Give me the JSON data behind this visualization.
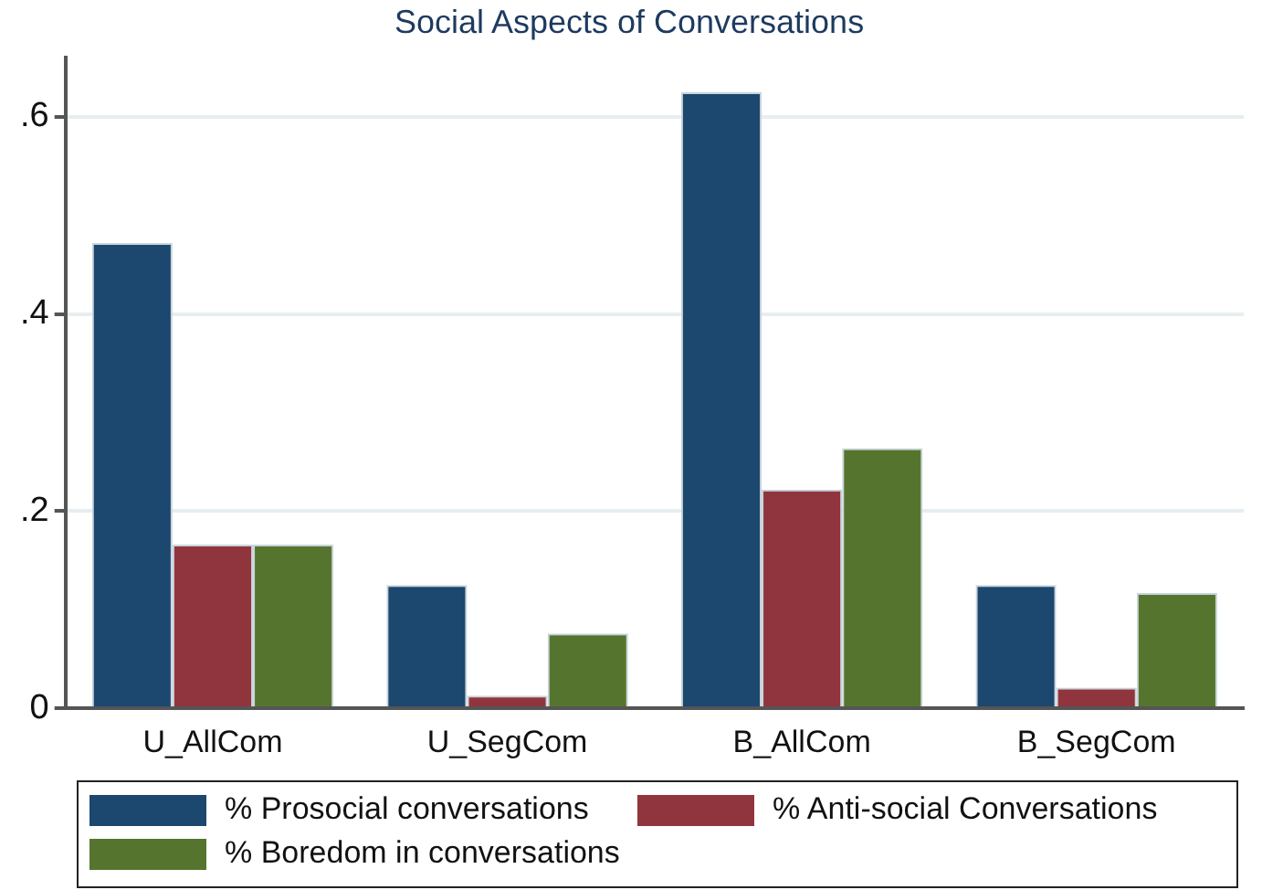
{
  "chart_data": {
    "type": "bar",
    "title": "Social Aspects of Conversations",
    "categories": [
      "U_AllCom",
      "U_SegCom",
      "B_AllCom",
      "B_SegCom"
    ],
    "series": [
      {
        "name": "% Prosocial conversations",
        "color": "#1c476e",
        "values": [
          0.472,
          0.125,
          0.625,
          0.125
        ]
      },
      {
        "name": "% Anti-social Conversations",
        "color": "#90353d",
        "values": [
          0.166,
          0.013,
          0.222,
          0.021
        ]
      },
      {
        "name": "% Boredom in conversations",
        "color": "#55752f",
        "values": [
          0.166,
          0.076,
          0.264,
          0.117
        ]
      }
    ],
    "ylim": [
      0,
      0.66
    ],
    "yticks": [
      {
        "value": 0,
        "label": "0"
      },
      {
        "value": 0.2,
        "label": ".2"
      },
      {
        "value": 0.4,
        "label": ".4"
      },
      {
        "value": 0.6,
        "label": ".6"
      }
    ],
    "grid": "y",
    "legend": "bottom"
  }
}
